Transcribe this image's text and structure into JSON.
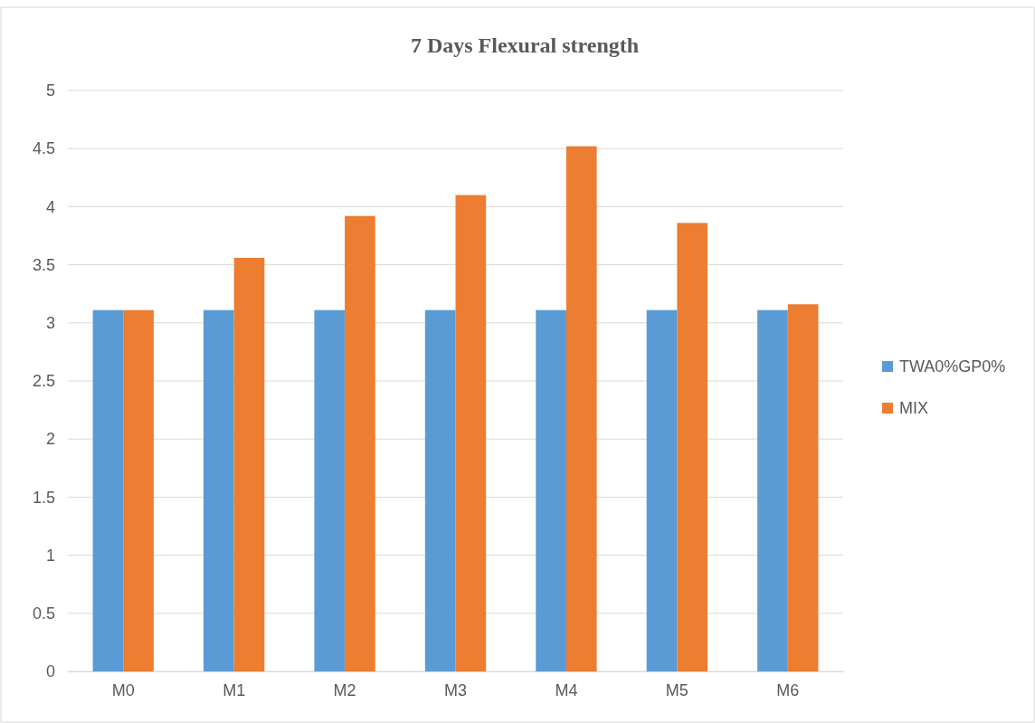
{
  "chart_data": {
    "type": "bar",
    "title": "7 Days Flexural strength",
    "categories": [
      "M0",
      "M1",
      "M2",
      "M3",
      "M4",
      "M5",
      "M6"
    ],
    "series": [
      {
        "name": "TWA0%GP0%",
        "color": "#5b9bd5",
        "values": [
          3.11,
          3.11,
          3.11,
          3.11,
          3.11,
          3.11,
          3.11
        ]
      },
      {
        "name": "MIX",
        "color": "#ed7d31",
        "values": [
          3.11,
          3.56,
          3.92,
          4.1,
          4.52,
          3.86,
          3.16
        ]
      }
    ],
    "ylim": [
      0,
      5
    ],
    "yticks": [
      0,
      0.5,
      1,
      1.5,
      2,
      2.5,
      3,
      3.5,
      4,
      4.5,
      5
    ],
    "grid": "y",
    "legend": "right"
  }
}
